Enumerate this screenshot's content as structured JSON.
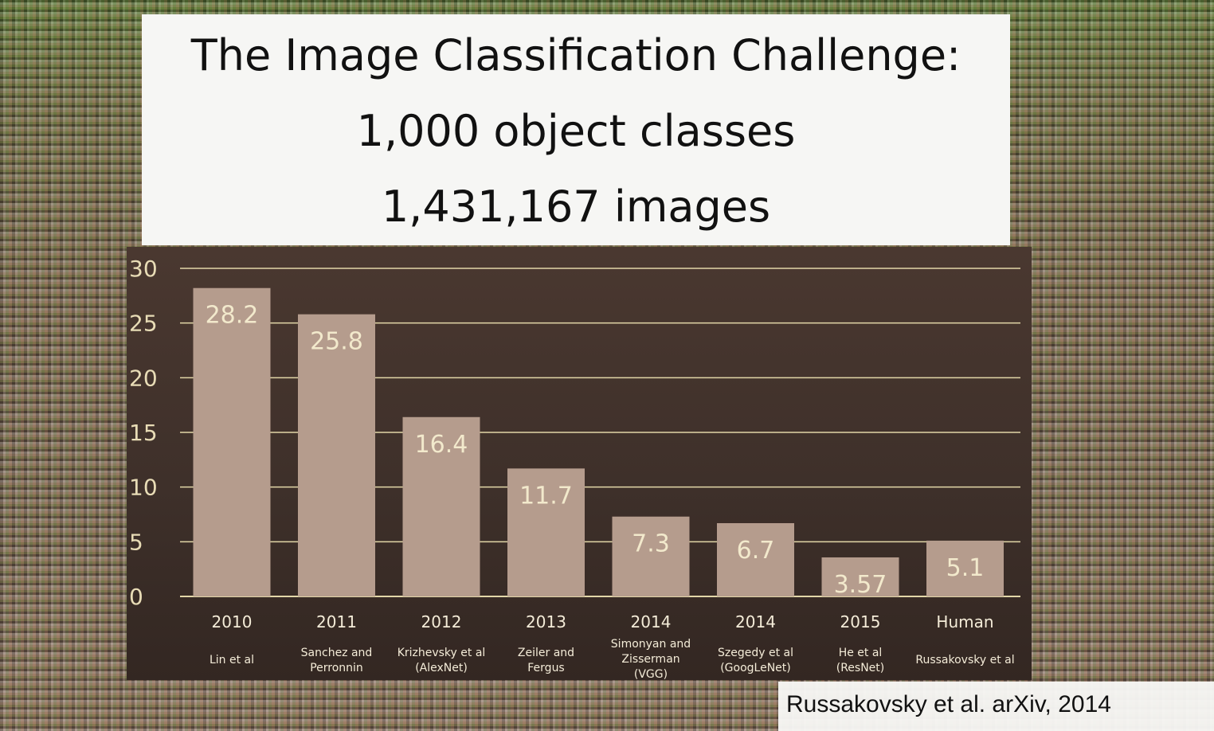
{
  "title": {
    "line1": "The Image Classification Challenge:",
    "line2": "1,000 object classes",
    "line3": "1,431,167 images"
  },
  "citation": "Russakovsky et al. arXiv, 2014",
  "chart_data": {
    "type": "bar",
    "categories": [
      "2010",
      "2011",
      "2012",
      "2013",
      "2014",
      "2014",
      "2015",
      "Human"
    ],
    "sublabels": [
      [
        "Lin et al"
      ],
      [
        "Sanchez and",
        "Perronnin"
      ],
      [
        "Krizhevsky et al",
        "(AlexNet)"
      ],
      [
        "Zeiler and",
        "Fergus"
      ],
      [
        "Simonyan and",
        "Zisserman",
        "(VGG)"
      ],
      [
        "Szegedy et al",
        "(GoogLeNet)"
      ],
      [
        "He et al",
        "(ResNet)"
      ],
      [
        "Russakovsky et al"
      ]
    ],
    "values": [
      28.2,
      25.8,
      16.4,
      11.7,
      7.3,
      6.7,
      3.57,
      5.1
    ],
    "value_labels": [
      "28.2",
      "25.8",
      "16.4",
      "11.7",
      "7.3",
      "6.7",
      "3.57",
      "5.1"
    ],
    "yticks": [
      "0",
      "5",
      "10",
      "15",
      "20",
      "25",
      "30"
    ],
    "ylim": [
      0,
      30
    ],
    "grid": true,
    "colors": {
      "bar": "#b59c8d",
      "grid": "#e3d7a8",
      "background": "#3e302a"
    }
  }
}
